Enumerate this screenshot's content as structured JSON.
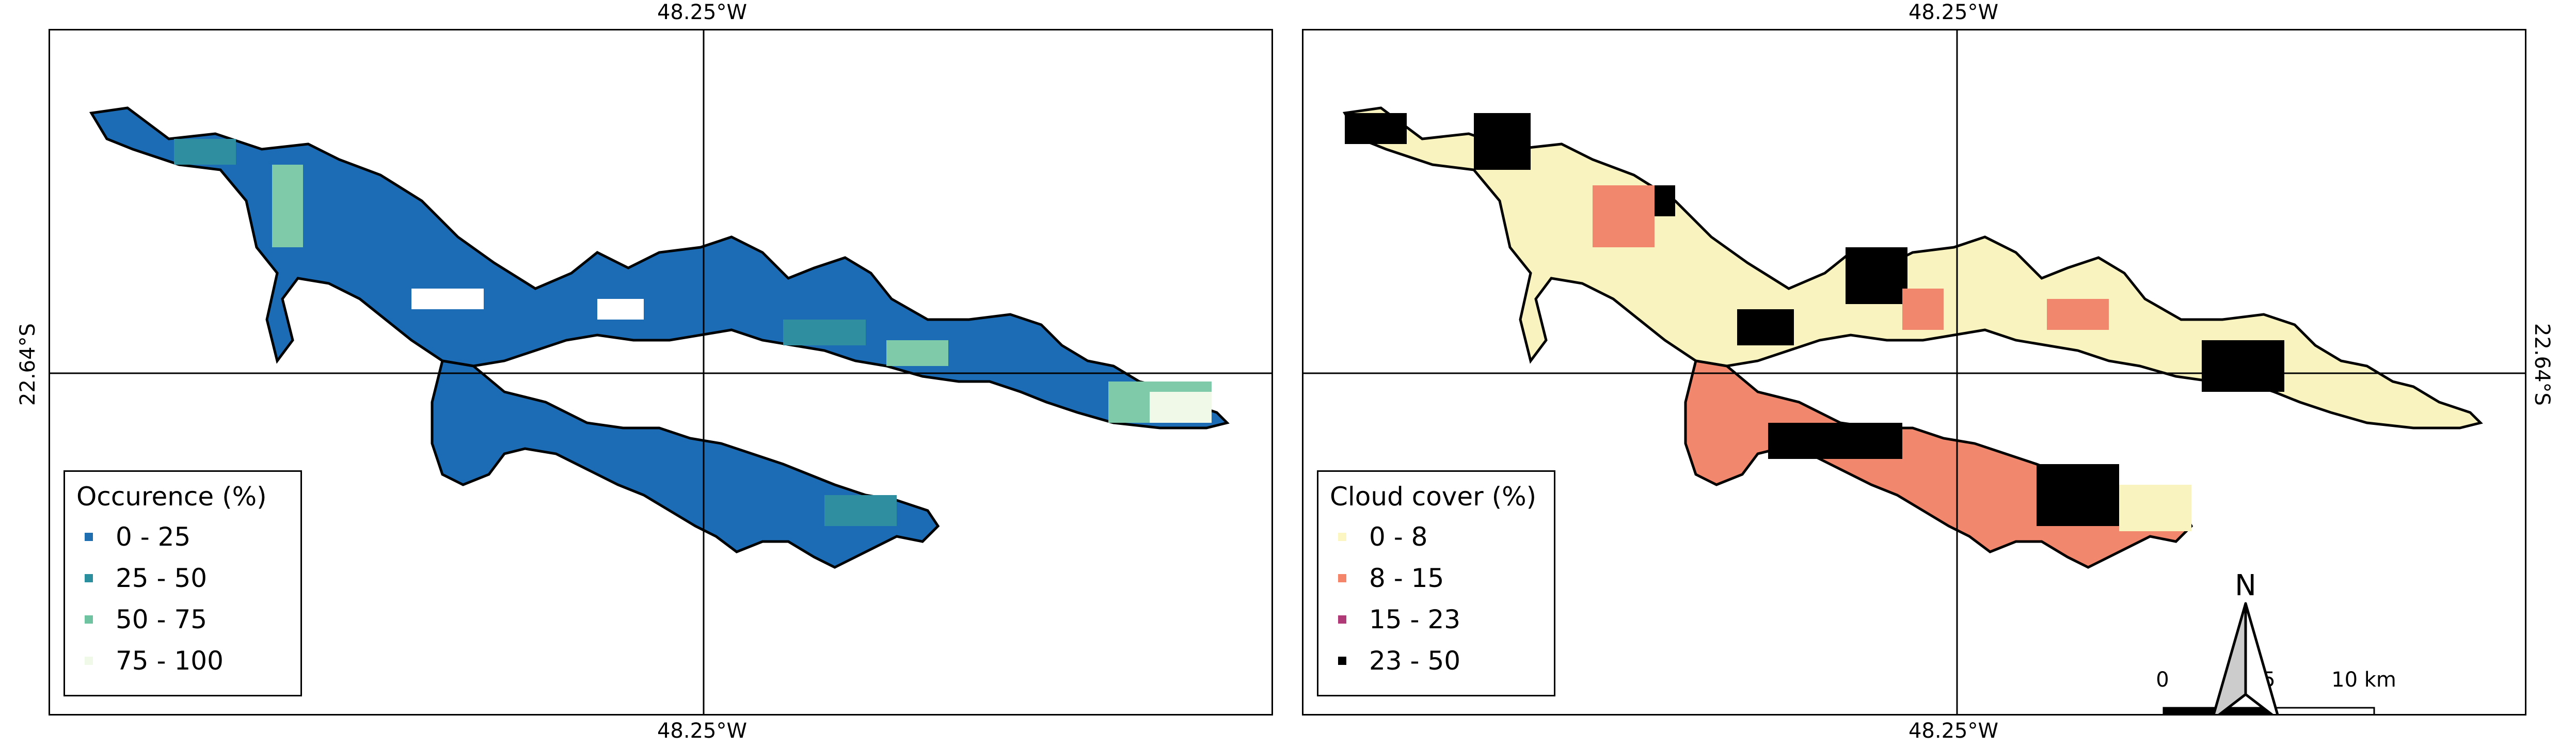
{
  "panels": [
    {
      "id": "occurrence",
      "top_lon_label": "48.25°W",
      "bottom_lon_label": "48.25°W",
      "left_lat_label": "22.64°S",
      "legend": {
        "title": "Occurence (%)",
        "items": [
          {
            "label": "0 - 25",
            "color": "#1f6fb0"
          },
          {
            "label": "25 - 50",
            "color": "#2b8f9e"
          },
          {
            "label": "50 - 75",
            "color": "#6fc3a0"
          },
          {
            "label": "75 - 100",
            "color": "#f0f8e8"
          }
        ]
      },
      "fill_colors": {
        "main": "#1b6cb4",
        "mid": "#2f8fa0",
        "light": "#7fcaa8"
      }
    },
    {
      "id": "cloud",
      "top_lon_label": "48.25°W",
      "bottom_lon_label": "48.25°W",
      "right_lat_label": "22.64°S",
      "legend": {
        "title": "Cloud cover (%)",
        "items": [
          {
            "label": "0 - 8",
            "color": "#fbf6c2"
          },
          {
            "label": "8 - 15",
            "color": "#f4856a"
          },
          {
            "label": "15 - 23",
            "color": "#b03a78"
          },
          {
            "label": "23 - 50",
            "color": "#000000"
          }
        ]
      },
      "fill_colors": {
        "main": "#f9f3bf",
        "mid": "#f1876d",
        "dark": "#000000"
      }
    }
  ],
  "scalebar": {
    "labels": [
      "0",
      "5",
      "10 km"
    ]
  },
  "north_arrow": {
    "letter": "N"
  }
}
